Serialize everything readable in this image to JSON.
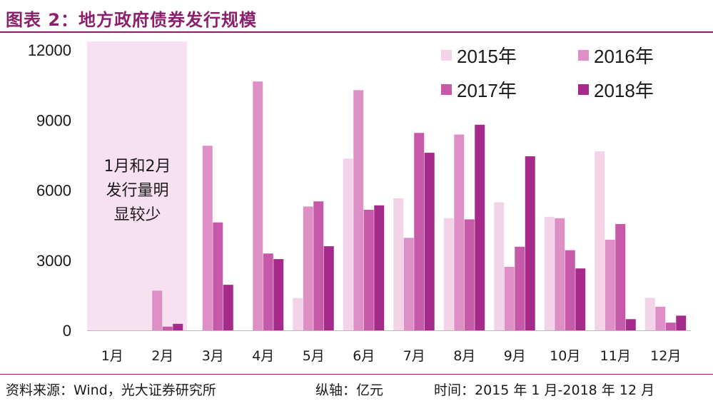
{
  "title": "图表 2：地方政府债券发行规模",
  "footer": {
    "source": "资料来源：Wind，光大证券研究所",
    "axis_unit": "纵轴：亿元",
    "period": "时间：2015 年 1 月-2018 年 12 月"
  },
  "annotation": {
    "lines": [
      "1月和2月",
      "发行量明",
      "显较少"
    ]
  },
  "chart_data": {
    "type": "bar",
    "title": "地方政府债券发行规模",
    "ylabel": "亿元",
    "xlabel": "",
    "ylim": [
      0,
      12000
    ],
    "yticks": [
      0,
      3000,
      6000,
      9000,
      12000
    ],
    "categories": [
      "1月",
      "2月",
      "3月",
      "4月",
      "5月",
      "6月",
      "7月",
      "8月",
      "9月",
      "10月",
      "11月",
      "12月"
    ],
    "legend_position": "top-right",
    "series": [
      {
        "name": "2015年",
        "color": "#f3d3e8",
        "values": [
          0,
          0,
          0,
          0,
          1380,
          7350,
          5650,
          4800,
          5480,
          4860,
          7660,
          1390
        ]
      },
      {
        "name": "2016年",
        "color": "#dd8fc6",
        "values": [
          0,
          1700,
          7900,
          10650,
          5300,
          10280,
          3960,
          8380,
          2720,
          4800,
          3880,
          1010
        ]
      },
      {
        "name": "2017年",
        "color": "#c75aa8",
        "values": [
          0,
          160,
          4620,
          3290,
          5520,
          5160,
          8450,
          4750,
          3580,
          3430,
          4550,
          330
        ]
      },
      {
        "name": "2018年",
        "color": "#a62a8a",
        "values": [
          0,
          280,
          1950,
          3050,
          3600,
          5350,
          7600,
          8800,
          7450,
          2650,
          480,
          630
        ]
      }
    ]
  }
}
